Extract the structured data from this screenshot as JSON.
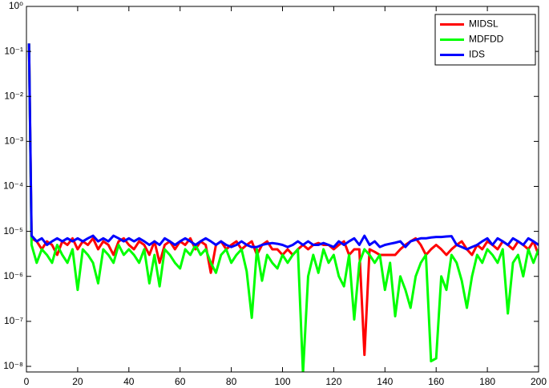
{
  "chart_data": {
    "type": "line",
    "yscale": "log",
    "legend": "upper right",
    "x": [
      1,
      2,
      4,
      6,
      8,
      10,
      12,
      14,
      16,
      18,
      20,
      22,
      24,
      26,
      28,
      30,
      32,
      34,
      36,
      38,
      40,
      42,
      44,
      46,
      48,
      50,
      52,
      54,
      56,
      58,
      60,
      62,
      64,
      66,
      68,
      70,
      72,
      74,
      76,
      78,
      80,
      82,
      84,
      86,
      88,
      90,
      92,
      94,
      96,
      98,
      100,
      102,
      104,
      106,
      108,
      110,
      112,
      114,
      116,
      118,
      120,
      122,
      124,
      126,
      128,
      130,
      132,
      134,
      136,
      138,
      140,
      142,
      144,
      146,
      148,
      150,
      152,
      154,
      156,
      158,
      160,
      162,
      164,
      166,
      168,
      170,
      172,
      174,
      176,
      178,
      180,
      182,
      184,
      186,
      188,
      190,
      192,
      194,
      196,
      198,
      200
    ],
    "series": [
      {
        "name": "MIDSL",
        "color": "#ff0000",
        "values": [
          0.15,
          7e-06,
          6e-06,
          4e-06,
          6e-06,
          5e-06,
          3e-06,
          6e-06,
          5e-06,
          7e-06,
          4e-06,
          6e-06,
          5e-06,
          7e-06,
          4e-06,
          6e-06,
          5e-06,
          3e-06,
          6e-06,
          7e-06,
          5e-06,
          4e-06,
          6e-06,
          5e-06,
          3e-06,
          6e-06,
          2e-06,
          5e-06,
          6e-06,
          4e-06,
          6e-06,
          5e-06,
          7e-06,
          4e-06,
          6e-06,
          5e-06,
          1.2e-06,
          5e-06,
          6e-06,
          4e-06,
          5e-06,
          6e-06,
          4e-06,
          5e-06,
          6e-06,
          3e-06,
          5e-06,
          6e-06,
          4e-06,
          4e-06,
          3e-06,
          4e-06,
          3e-06,
          4e-06,
          5e-06,
          4e-06,
          5e-06,
          5.5e-06,
          5e-06,
          5e-06,
          4e-06,
          5e-06,
          6e-06,
          3e-06,
          4e-06,
          4e-06,
          1.8e-08,
          4e-06,
          3.5e-06,
          3e-06,
          3e-06,
          3e-06,
          3e-06,
          4e-06,
          5e-06,
          6e-06,
          7e-06,
          5e-06,
          3e-06,
          4e-06,
          5e-06,
          4e-06,
          3e-06,
          4e-06,
          5e-06,
          6e-06,
          4e-06,
          3e-06,
          5e-06,
          4e-06,
          6e-06,
          5e-06,
          4e-06,
          6e-06,
          5e-06,
          4e-06,
          6e-06,
          5e-06,
          4e-06,
          6e-06,
          3e-06
        ]
      },
      {
        "name": "MDFDD",
        "color": "#00ff00",
        "values": [
          0.15,
          5e-06,
          2e-06,
          4e-06,
          3e-06,
          2e-06,
          5e-06,
          3e-06,
          2e-06,
          4e-06,
          5e-07,
          4e-06,
          3e-06,
          2e-06,
          7e-07,
          4e-06,
          3e-06,
          2e-06,
          5e-06,
          3e-06,
          4e-06,
          3e-06,
          2e-06,
          4e-06,
          7e-07,
          3e-06,
          6e-07,
          4e-06,
          3e-06,
          2e-06,
          1.5e-06,
          4e-06,
          3e-06,
          5e-06,
          3e-06,
          4e-06,
          2e-06,
          1.2e-06,
          3e-06,
          4e-06,
          2e-06,
          3e-06,
          4e-06,
          1.3e-06,
          1.2e-07,
          4e-06,
          8e-07,
          3e-06,
          2e-06,
          1.5e-06,
          3e-06,
          2e-06,
          3e-06,
          4e-06,
          7e-09,
          1e-06,
          3e-06,
          1.2e-06,
          4e-06,
          2e-06,
          3e-06,
          1e-06,
          6e-07,
          3e-06,
          1.1e-07,
          2e-06,
          4e-06,
          3e-06,
          2e-06,
          3e-06,
          5e-07,
          2e-06,
          1.3e-07,
          1e-06,
          5e-07,
          2e-07,
          1e-06,
          2e-06,
          3e-06,
          1.3e-08,
          1.5e-08,
          1e-06,
          5e-07,
          3e-06,
          2e-06,
          8e-07,
          2e-07,
          1e-06,
          3e-06,
          2e-06,
          4e-06,
          3e-06,
          2e-06,
          4e-06,
          1.5e-07,
          2e-06,
          3e-06,
          1e-06,
          4e-06,
          2e-06,
          4e-06
        ]
      },
      {
        "name": "IDS",
        "color": "#0000ff",
        "values": [
          0.15,
          8e-06,
          6e-06,
          7e-06,
          5e-06,
          6e-06,
          7e-06,
          6e-06,
          7e-06,
          6e-06,
          7e-06,
          6e-06,
          7e-06,
          8e-06,
          6e-06,
          7e-06,
          6e-06,
          8e-06,
          7e-06,
          6e-06,
          7e-06,
          6e-06,
          7e-06,
          6e-06,
          5e-06,
          6e-06,
          5e-06,
          7e-06,
          6e-06,
          5e-06,
          6e-06,
          7e-06,
          6e-06,
          5e-06,
          6e-06,
          7e-06,
          6e-06,
          5e-06,
          6e-06,
          5e-06,
          4.5e-06,
          5e-06,
          6e-06,
          5e-06,
          4.5e-06,
          4.5e-06,
          5e-06,
          5.3e-06,
          5.5e-06,
          5.3e-06,
          5e-06,
          4.5e-06,
          5e-06,
          6e-06,
          5e-06,
          6e-06,
          5e-06,
          5e-06,
          5.5e-06,
          5e-06,
          4.5e-06,
          6e-06,
          5e-06,
          6e-06,
          7e-06,
          5e-06,
          8e-06,
          5e-06,
          6e-06,
          4.5e-06,
          5e-06,
          5.3e-06,
          5.6e-06,
          6e-06,
          4.5e-06,
          6e-06,
          6.5e-06,
          7e-06,
          7e-06,
          7.3e-06,
          7.5e-06,
          7.5e-06,
          7.7e-06,
          7.8e-06,
          5e-06,
          4.5e-06,
          4e-06,
          4.5e-06,
          5e-06,
          6e-06,
          7e-06,
          5e-06,
          7e-06,
          6e-06,
          5e-06,
          7e-06,
          6e-06,
          5e-06,
          7e-06,
          6e-06,
          5e-06
        ]
      }
    ],
    "xlim": [
      0,
      200
    ],
    "xticks": [
      0,
      20,
      40,
      60,
      80,
      100,
      120,
      140,
      160,
      180,
      200
    ],
    "ylim": [
      7.5e-09,
      1
    ],
    "yticks": [
      {
        "value": 1e-08,
        "label": "10⁻⁸"
      },
      {
        "value": 1e-07,
        "label": "10⁻⁷"
      },
      {
        "value": 1e-06,
        "label": "10⁻⁶"
      },
      {
        "value": 1e-05,
        "label": "10⁻⁵"
      },
      {
        "value": 0.0001,
        "label": "10⁻⁴"
      },
      {
        "value": 0.001,
        "label": "10⁻³"
      },
      {
        "value": 0.01,
        "label": "10⁻²"
      },
      {
        "value": 0.1,
        "label": "10⁻¹"
      },
      {
        "value": 1,
        "label": "10⁰"
      }
    ]
  }
}
